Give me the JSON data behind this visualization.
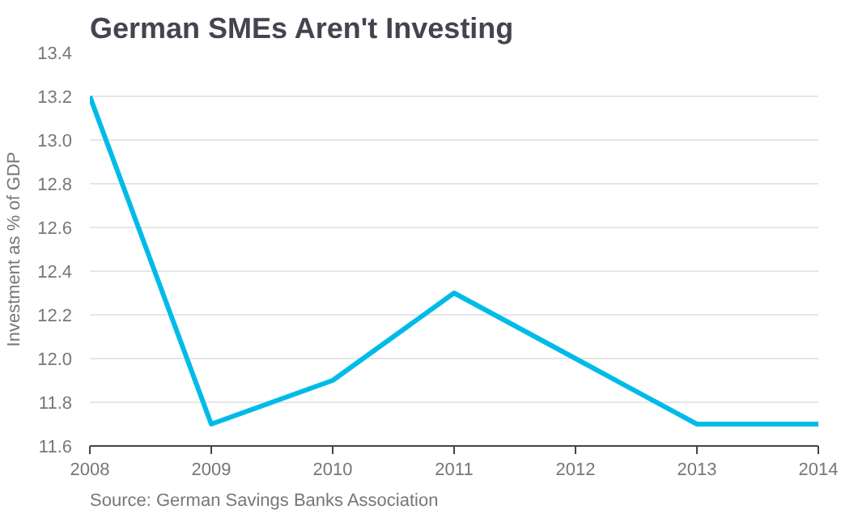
{
  "chart_data": {
    "type": "line",
    "title": "German SMEs Aren't Investing",
    "ylabel": "Investment as % of GDP",
    "x": [
      2008,
      2009,
      2010,
      2011,
      2012,
      2013,
      2014
    ],
    "series": [
      {
        "color": "#00bbe8",
        "values": [
          13.2,
          11.7,
          11.9,
          12.3,
          12.0,
          11.7,
          11.7
        ]
      }
    ],
    "xlim": [
      2008,
      2014
    ],
    "xticks": [
      2008,
      2009,
      2010,
      2011,
      2012,
      2013,
      2014
    ],
    "ylim": [
      11.6,
      13.4
    ],
    "yticks": [
      {
        "value": 11.6,
        "label": "11.6"
      },
      {
        "value": 11.8,
        "label": "11.8"
      },
      {
        "value": 12.0,
        "label": "12.0"
      },
      {
        "value": 12.2,
        "label": "12.2"
      },
      {
        "value": 12.4,
        "label": "12.4"
      },
      {
        "value": 12.6,
        "label": "12.6"
      },
      {
        "value": 12.8,
        "label": "12.8"
      },
      {
        "value": 13.0,
        "label": "13.0"
      },
      {
        "value": 13.2,
        "label": "13.2"
      },
      {
        "value": 13.4,
        "label": "13.4"
      }
    ],
    "grid": "y",
    "line_style": "solid",
    "annotations": [
      "Source: German Savings Banks Association"
    ]
  }
}
